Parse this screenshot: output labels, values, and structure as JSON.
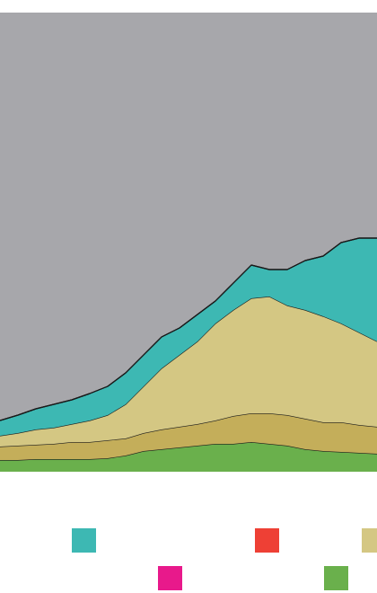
{
  "chart_data": {
    "type": "stacked-area",
    "x": [
      0,
      1,
      2,
      3,
      4,
      5,
      6,
      7,
      8,
      9,
      10,
      11,
      12,
      13,
      14,
      15,
      16,
      17,
      18,
      19,
      20,
      21
    ],
    "xlim": [
      0,
      21
    ],
    "ylim": [
      0,
      511
    ],
    "background": "#a7a7ab",
    "series": [
      {
        "color": "#6ab04c",
        "values": [
          13,
          13,
          14,
          14,
          14,
          14,
          15,
          18,
          23,
          25,
          27,
          29,
          31,
          31,
          33,
          31,
          29,
          25,
          23,
          22,
          21,
          20
        ]
      },
      {
        "color": "#c4ae5a",
        "values": [
          15,
          16,
          16,
          17,
          19,
          19,
          20,
          19,
          20,
          22,
          23,
          24,
          26,
          31,
          32,
          34,
          34,
          34,
          32,
          33,
          31,
          30
        ]
      },
      {
        "color": "#d4c783",
        "values": [
          12,
          14,
          17,
          18,
          20,
          24,
          28,
          38,
          52,
          68,
          80,
          92,
          108,
          118,
          128,
          130,
          122,
          121,
          118,
          110,
          103,
          95
        ]
      },
      {
        "color": "#3db8b3",
        "values": [
          17,
          20,
          23,
          26,
          27,
          30,
          32,
          35,
          35,
          35,
          30,
          30,
          25,
          30,
          37,
          30,
          40,
          55,
          67,
          90,
          105,
          115
        ]
      },
      {
        "color": "#ee4035",
        "values": [
          0,
          0,
          0,
          0,
          0,
          0,
          0,
          0,
          0,
          0,
          0,
          0,
          0,
          0,
          0,
          0,
          0,
          0,
          0,
          0,
          0,
          0
        ]
      },
      {
        "color": "#e8198b",
        "values": [
          0,
          0,
          0,
          0,
          0,
          0,
          0,
          0,
          0,
          0,
          0,
          0,
          0,
          0,
          0,
          0,
          0,
          0,
          0,
          0,
          0,
          0
        ]
      }
    ]
  }
}
